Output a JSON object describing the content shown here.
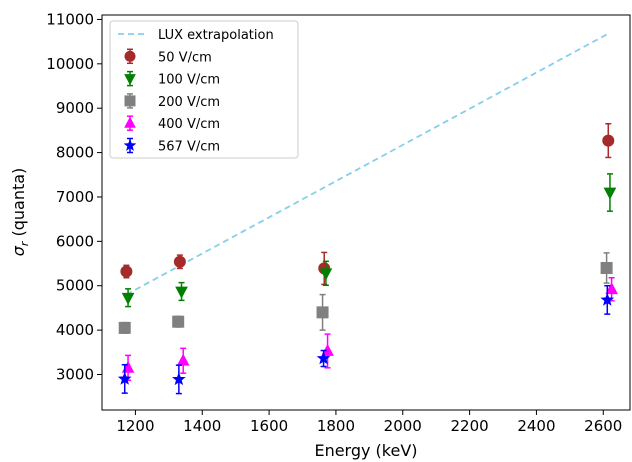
{
  "chart_data": {
    "type": "scatter",
    "xlabel": "Energy (keV)",
    "ylabel_main": "σ",
    "ylabel_sub": "r",
    "ylabel_rest": " (quanta)",
    "xlim": [
      1100,
      2680
    ],
    "ylim": [
      2200,
      11100
    ],
    "x_ticks": [
      1200,
      1400,
      1600,
      1800,
      2000,
      2200,
      2400,
      2600
    ],
    "y_ticks": [
      3000,
      4000,
      5000,
      6000,
      7000,
      8000,
      9000,
      10000,
      11000
    ],
    "grid": false,
    "legend_position": "top-left",
    "line_series": [
      {
        "name": "LUX extrapolation",
        "color": "#87ceeb",
        "style": "dashed",
        "x": [
          1173,
          2615
        ],
        "y": [
          4800,
          10680
        ]
      }
    ],
    "series": [
      {
        "name": "50 V/cm",
        "color": "#a52a2a",
        "marker": "circle",
        "points": [
          {
            "x": 1173,
            "y": 5320,
            "err": 140
          },
          {
            "x": 1333,
            "y": 5540,
            "err": 150
          },
          {
            "x": 1765,
            "y": 5390,
            "err": 360
          },
          {
            "x": 2615,
            "y": 8270,
            "err": 380
          }
        ]
      },
      {
        "name": "100 V/cm",
        "color": "#008000",
        "marker": "triangle-down",
        "points": [
          {
            "x": 1178,
            "y": 4730,
            "err": 200
          },
          {
            "x": 1338,
            "y": 4870,
            "err": 200
          },
          {
            "x": 1770,
            "y": 5280,
            "err": 270
          },
          {
            "x": 2620,
            "y": 7100,
            "err": 420
          }
        ]
      },
      {
        "name": "200 V/cm",
        "color": "#808080",
        "marker": "square",
        "points": [
          {
            "x": 1168,
            "y": 4050,
            "err": 120
          },
          {
            "x": 1328,
            "y": 4190,
            "err": 120
          },
          {
            "x": 1760,
            "y": 4400,
            "err": 400
          },
          {
            "x": 2610,
            "y": 5400,
            "err": 340
          }
        ]
      },
      {
        "name": "400 V/cm",
        "color": "#ff00ff",
        "marker": "triangle-up",
        "points": [
          {
            "x": 1178,
            "y": 3150,
            "err": 280
          },
          {
            "x": 1343,
            "y": 3310,
            "err": 280
          },
          {
            "x": 1775,
            "y": 3530,
            "err": 380
          },
          {
            "x": 2625,
            "y": 4920,
            "err": 260
          }
        ]
      },
      {
        "name": "567 V/cm",
        "color": "#0000ff",
        "marker": "star",
        "points": [
          {
            "x": 1168,
            "y": 2900,
            "err": 320
          },
          {
            "x": 1330,
            "y": 2890,
            "err": 320
          },
          {
            "x": 1763,
            "y": 3360,
            "err": 180
          },
          {
            "x": 2612,
            "y": 4680,
            "err": 320
          }
        ]
      }
    ]
  }
}
